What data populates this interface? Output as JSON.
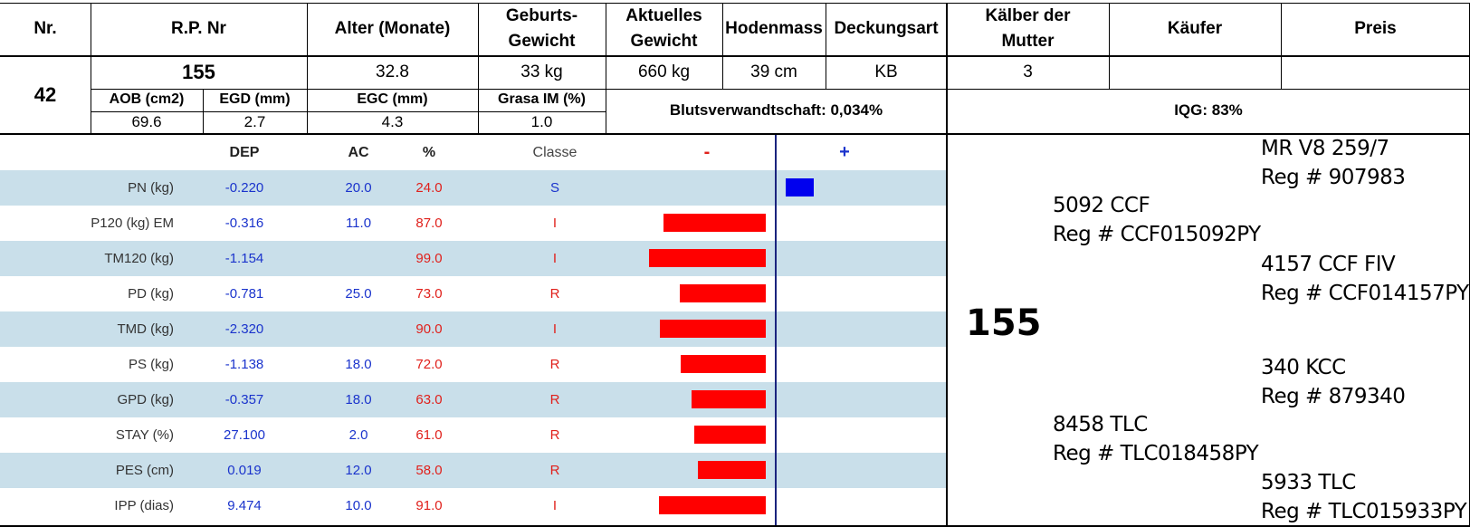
{
  "header": {
    "nr": "Nr.",
    "rp_nr": "R.P. Nr",
    "alter": "Alter (Monate)",
    "geburts_1": "Geburts-",
    "geburts_2": "Gewicht",
    "aktuelles_1": "Aktuelles",
    "aktuelles_2": "Gewicht",
    "hodenmass": "Hodenmass",
    "deckungsart": "Deckungsart",
    "kaelber_1": "Kälber der",
    "kaelber_2": "Mutter",
    "kaeufer": "Käufer",
    "preis": "Preis"
  },
  "record": {
    "nr": "42",
    "rp_nr": "155",
    "alter": "32.8",
    "geburtsgewicht": "33 kg",
    "aktuelles_gewicht": "660 kg",
    "hodenmass": "39 cm",
    "deckungsart": "KB",
    "kaelber": "3",
    "kaeufer": "",
    "preis": ""
  },
  "carcass": {
    "headers": [
      "AOB (cm2)",
      "EGD (mm)",
      "EGC (mm)",
      "Grasa IM (%)"
    ],
    "values": [
      "69.6",
      "2.7",
      "4.3",
      "1.0"
    ],
    "blutsverwandtschaft": "Blutsverwandtschaft: 0,034%",
    "iqg": "IQG: 83%"
  },
  "dep_table": {
    "headers": {
      "dep": "DEP",
      "ac": "AC",
      "pct": "%",
      "classe": "Classe",
      "minus": "-",
      "plus": "+"
    },
    "rows": [
      {
        "trait": "PN (kg)",
        "dep": "-0.220",
        "ac": "20.0",
        "pct": "24.0",
        "classe": "S",
        "bar": 24.0,
        "side": "plus"
      },
      {
        "trait": "P120 (kg) EM",
        "dep": "-0.316",
        "ac": "11.0",
        "pct": "87.0",
        "classe": "I",
        "bar": 87.0,
        "side": "minus"
      },
      {
        "trait": "TM120 (kg)",
        "dep": "-1.154",
        "ac": "",
        "pct": "99.0",
        "classe": "I",
        "bar": 99.0,
        "side": "minus"
      },
      {
        "trait": "PD (kg)",
        "dep": "-0.781",
        "ac": "25.0",
        "pct": "73.0",
        "classe": "R",
        "bar": 73.0,
        "side": "minus"
      },
      {
        "trait": "TMD (kg)",
        "dep": "-2.320",
        "ac": "",
        "pct": "90.0",
        "classe": "I",
        "bar": 90.0,
        "side": "minus"
      },
      {
        "trait": "PS (kg)",
        "dep": "-1.138",
        "ac": "18.0",
        "pct": "72.0",
        "classe": "R",
        "bar": 72.0,
        "side": "minus"
      },
      {
        "trait": "GPD (kg)",
        "dep": "-0.357",
        "ac": "18.0",
        "pct": "63.0",
        "classe": "R",
        "bar": 63.0,
        "side": "minus"
      },
      {
        "trait": "STAY (%)",
        "dep": "27.100",
        "ac": "2.0",
        "pct": "61.0",
        "classe": "R",
        "bar": 61.0,
        "side": "minus"
      },
      {
        "trait": "PES (cm)",
        "dep": "0.019",
        "ac": "12.0",
        "pct": "58.0",
        "classe": "R",
        "bar": 58.0,
        "side": "minus"
      },
      {
        "trait": "IPP (dias)",
        "dep": "9.474",
        "ac": "10.0",
        "pct": "91.0",
        "classe": "I",
        "bar": 91.0,
        "side": "minus"
      }
    ],
    "colors": {
      "stripe": "#c9dfea",
      "bar_minus": "#ff0000",
      "bar_plus": "#0000ee",
      "axis": "#1a237e"
    }
  },
  "pedigree": {
    "animal": "155",
    "sire": {
      "name": "5092 CCF",
      "reg": "Reg # CCF015092PY"
    },
    "dam": {
      "name": "8458 TLC",
      "reg": "Reg # TLC018458PY"
    },
    "sire_sire": {
      "name": "MR V8 259/7",
      "reg": "Reg # 907983"
    },
    "sire_dam": {
      "name": "4157 CCF FIV",
      "reg": "Reg # CCF014157PY"
    },
    "dam_sire": {
      "name": "340 KCC",
      "reg": "Reg # 879340"
    },
    "dam_dam": {
      "name": "5933 TLC",
      "reg": "Reg # TLC015933PY"
    }
  }
}
